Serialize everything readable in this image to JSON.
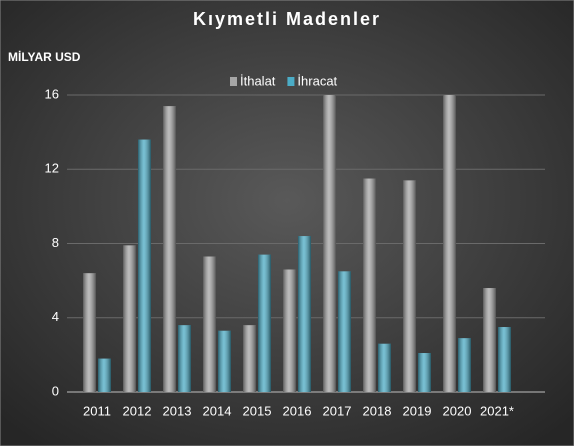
{
  "chart_data": {
    "type": "bar",
    "title": "Kıymetli Madenler",
    "y_label": "MİLYAR USD",
    "categories": [
      "2011",
      "2012",
      "2013",
      "2014",
      "2015",
      "2016",
      "2017",
      "2018",
      "2019",
      "2020",
      "2021*"
    ],
    "series": [
      {
        "name": "İthalat",
        "color": "#a6a6a6",
        "values": [
          6.4,
          7.9,
          15.4,
          7.3,
          3.6,
          6.6,
          16,
          11.5,
          11.4,
          16,
          5.6
        ]
      },
      {
        "name": "İhracat",
        "color": "#4bacc6",
        "values": [
          1.8,
          13.6,
          3.6,
          3.3,
          7.4,
          8.4,
          6.5,
          2.6,
          2.1,
          2.9,
          3.5
        ]
      }
    ],
    "ylim": [
      0,
      16
    ],
    "yticks": [
      0,
      4,
      8,
      12,
      16
    ],
    "grid": true,
    "legend": "top"
  }
}
